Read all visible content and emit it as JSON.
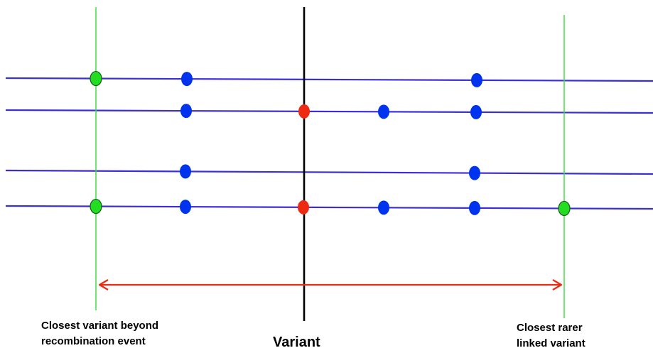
{
  "labels": {
    "left_line1": "Closest variant beyond",
    "left_line2": "recombination event",
    "center": "Variant",
    "right_line1": "Closest rarer",
    "right_line2": "linked variant"
  },
  "colors": {
    "haplotype": "#3a2fd6",
    "other_variant": "#0033ee",
    "target_variant": "#ee2a10",
    "boundary_variant": "#22dd22",
    "boundary_line": "#44dd44",
    "variant_line": "#000000",
    "interval_arrow": "#ee2a10"
  }
}
